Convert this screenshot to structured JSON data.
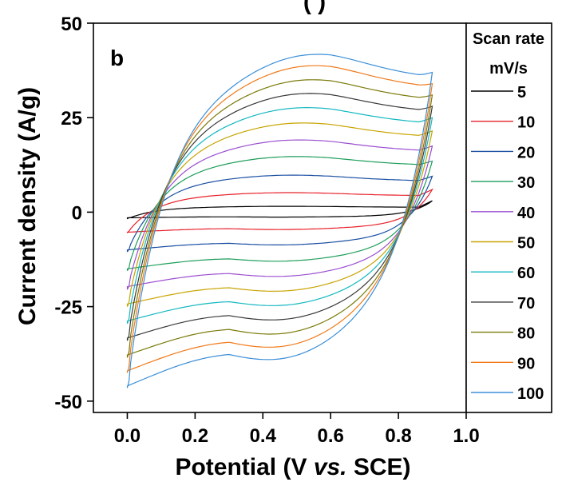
{
  "chart_data": {
    "type": "line",
    "panel_label": "b",
    "title_fragment": "(                 )",
    "xlabel": {
      "main": "Potential (V ",
      "italic": "vs.",
      "tail": " SCE)"
    },
    "ylabel": "Current density (A/g)",
    "xlim": [
      -0.1,
      1.0
    ],
    "ylim": [
      -53,
      50
    ],
    "x_ticks": [
      "0.0",
      "0.2",
      "0.4",
      "0.6",
      "0.8",
      "1.0"
    ],
    "x_tick_values": [
      0.0,
      0.2,
      0.4,
      0.6,
      0.8,
      1.0
    ],
    "y_ticks": [
      "50",
      "25",
      "0",
      "-25",
      "-50"
    ],
    "y_tick_values": [
      50,
      25,
      0,
      -25,
      -50
    ],
    "legend": {
      "title_line1": "Scan rate",
      "title_line2": "mV/s",
      "placement": "right"
    },
    "series": [
      {
        "name": "5",
        "color": "#000000",
        "anodic_peak": 1.5,
        "cathodic_floor": -1.5,
        "start": -1.8,
        "end": 3.0
      },
      {
        "name": "10",
        "color": "#e8202a",
        "anodic_peak": 5.0,
        "cathodic_floor": -5.3,
        "start": -5.5,
        "end": 6.0
      },
      {
        "name": "20",
        "color": "#1a4fa3",
        "anodic_peak": 9.5,
        "cathodic_floor": -10.0,
        "start": -10.5,
        "end": 9.5
      },
      {
        "name": "30",
        "color": "#1e9e5a",
        "anodic_peak": 14.3,
        "cathodic_floor": -15.0,
        "start": -15.5,
        "end": 13.5
      },
      {
        "name": "40",
        "color": "#9b4fd0",
        "anodic_peak": 18.6,
        "cathodic_floor": -19.7,
        "start": -20.5,
        "end": 17.5
      },
      {
        "name": "50",
        "color": "#c8a400",
        "anodic_peak": 23.0,
        "cathodic_floor": -24.3,
        "start": -25.0,
        "end": 21.5
      },
      {
        "name": "60",
        "color": "#14b8c0",
        "anodic_peak": 27.0,
        "cathodic_floor": -28.8,
        "start": -29.5,
        "end": 25.0
      },
      {
        "name": "70",
        "color": "#3a3a3a",
        "anodic_peak": 30.7,
        "cathodic_floor": -33.3,
        "start": -34.0,
        "end": 28.0
      },
      {
        "name": "80",
        "color": "#7a7a0a",
        "anodic_peak": 34.3,
        "cathodic_floor": -37.8,
        "start": -38.5,
        "end": 31.0
      },
      {
        "name": "90",
        "color": "#f07a1a",
        "anodic_peak": 38.0,
        "cathodic_floor": -42.0,
        "start": -42.5,
        "end": 34.0
      },
      {
        "name": "100",
        "color": "#3a8fd8",
        "anodic_peak": 41.0,
        "cathodic_floor": -46.0,
        "start": -46.5,
        "end": 37.0
      }
    ]
  }
}
